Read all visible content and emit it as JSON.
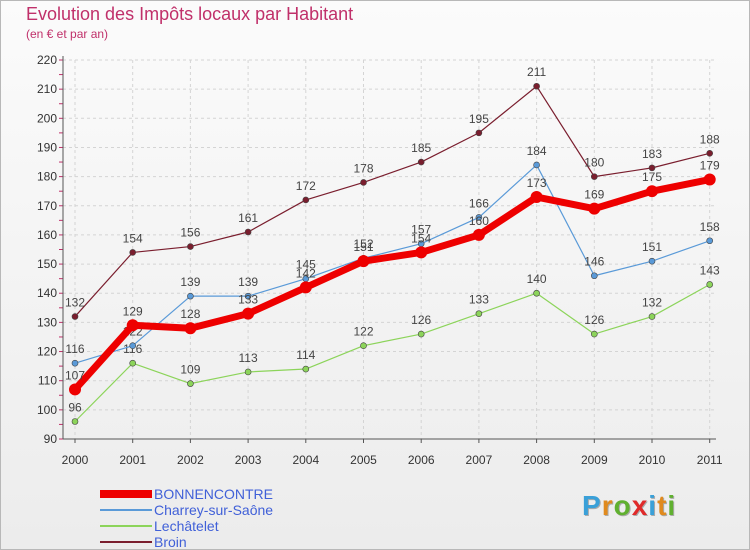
{
  "title": "Evolution des Impôts locaux par Habitant",
  "subtitle": "(en € et par an)",
  "logo": [
    "P",
    "r",
    "o",
    "x",
    "i",
    "t",
    "i"
  ],
  "logo_colors": [
    "#3aa0d8",
    "#e08a1e",
    "#60b030",
    "#e02a2a",
    "#3aa0d8",
    "#e08a1e",
    "#60b030"
  ],
  "chart_data": {
    "type": "line",
    "title": "Evolution des Impôts locaux par Habitant",
    "subtitle": "(en € et par an)",
    "xlabel": "",
    "ylabel": "",
    "ylim": [
      90,
      220
    ],
    "yticks": [
      90,
      100,
      110,
      120,
      130,
      140,
      150,
      160,
      170,
      180,
      190,
      200,
      210,
      220
    ],
    "categories": [
      "2000",
      "2001",
      "2002",
      "2003",
      "2004",
      "2005",
      "2006",
      "2007",
      "2008",
      "2009",
      "2010",
      "2011"
    ],
    "legend_position": "bottom-left",
    "series": [
      {
        "name": "Broin",
        "color": "#7a1e2e",
        "values": [
          132,
          154,
          156,
          161,
          172,
          178,
          185,
          195,
          211,
          180,
          183,
          188
        ],
        "labels": [
          "132",
          "154",
          "156",
          "161",
          "172",
          "178",
          "185",
          "195",
          "211",
          "180",
          "183",
          "188"
        ]
      },
      {
        "name": "Lechâtelet",
        "color": "#8cd45a",
        "values": [
          96,
          116,
          109,
          113,
          114,
          122,
          126,
          133,
          140,
          126,
          132,
          143
        ],
        "labels": [
          "96",
          "116",
          "109",
          "113",
          "114",
          "122",
          "126",
          "133",
          "140",
          "126",
          "132",
          "143"
        ]
      },
      {
        "name": "Charrey-sur-Saône",
        "color": "#5a9ad8",
        "values": [
          116,
          122,
          139,
          139,
          145,
          152,
          157,
          166,
          184,
          146,
          151,
          158
        ],
        "labels": [
          "116",
          "122",
          "139",
          "139",
          "145",
          "152",
          "157",
          "166",
          "184",
          "146",
          "151",
          "158"
        ]
      },
      {
        "name": "BONNENCONTRE",
        "color": "#ee0000",
        "values": [
          107,
          129,
          128,
          133,
          142,
          151,
          154,
          160,
          173,
          169,
          175,
          179
        ],
        "labels": [
          "107",
          "129",
          "128",
          "133",
          "142",
          "151",
          "154",
          "160",
          "173",
          "169",
          "175",
          "179"
        ]
      }
    ],
    "legend": [
      {
        "name": "BONNENCONTRE",
        "color": "#ee0000"
      },
      {
        "name": "Charrey-sur-Saône",
        "color": "#5a9ad8"
      },
      {
        "name": "Lechâtelet",
        "color": "#8cd45a"
      },
      {
        "name": "Broin",
        "color": "#7a1e2e"
      }
    ]
  }
}
